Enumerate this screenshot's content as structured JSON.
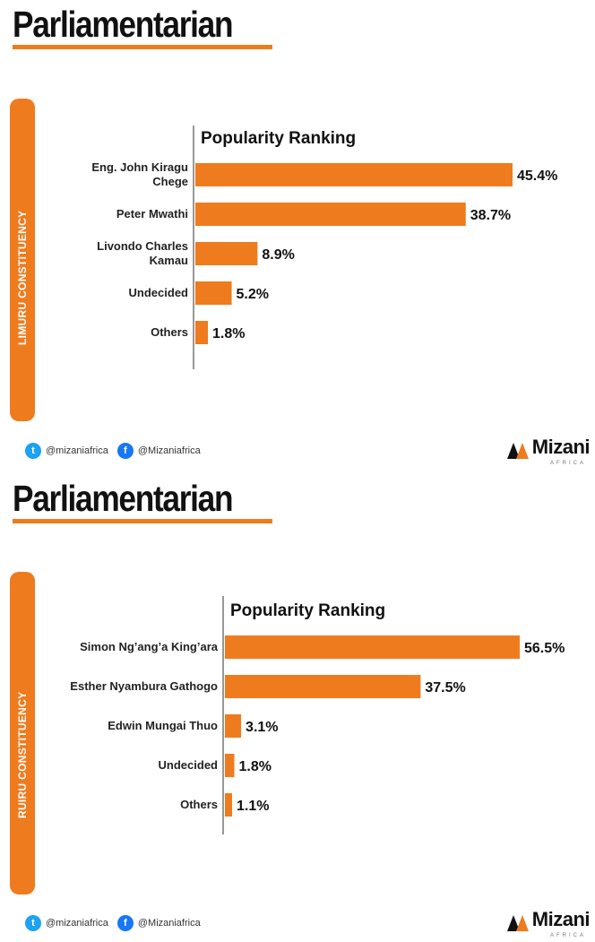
{
  "panels": [
    {
      "headline": "Parliamentarian",
      "constituency": "LIMURU CONSTITUENCY",
      "footer": {
        "twitter": "@mizaniafrica",
        "facebook": "@Mizaniafrica"
      },
      "logo": {
        "name": "Mizani",
        "sub": "AFRICA"
      }
    },
    {
      "headline": "Parliamentarian",
      "constituency": "RUIRU CONSTITUENCY",
      "footer": {
        "twitter": "@mizaniafrica",
        "facebook": "@Mizaniafrica"
      },
      "logo": {
        "name": "Mizani",
        "sub": "AFRICA"
      }
    }
  ],
  "colors": {
    "accent": "#ef7b1f",
    "text": "#111111"
  },
  "icons": [
    "twitter-icon",
    "facebook-icon",
    "mizani-logo-icon"
  ],
  "chart_data": [
    {
      "type": "bar",
      "orientation": "horizontal",
      "title": "Popularity Ranking",
      "categories": [
        "Eng. John Kiragu Chege",
        "Peter Mwathi",
        "Livondo Charles Kamau",
        "Undecided",
        "Others"
      ],
      "category_lines": [
        [
          "Eng. John Kiragu",
          "Chege"
        ],
        [
          "Peter Mwathi"
        ],
        [
          "Livondo Charles",
          "Kamau"
        ],
        [
          "Undecided"
        ],
        [
          "Others"
        ]
      ],
      "values": [
        45.4,
        38.7,
        8.9,
        5.2,
        1.8
      ],
      "value_labels": [
        "45.4%",
        "38.7%",
        "8.9%",
        "5.2%",
        "1.8%"
      ],
      "xlim": [
        0,
        60
      ],
      "grid": false,
      "legend": "none"
    },
    {
      "type": "bar",
      "orientation": "horizontal",
      "title": "Popularity Ranking",
      "categories": [
        "Simon Ng'ang'a King'ara",
        "Esther Nyambura Gathogo",
        "Edwin Mungai Thuo",
        "Undecided",
        "Others"
      ],
      "category_lines": [
        [
          "Simon Ng’ang’a King’ara"
        ],
        [
          "Esther Nyambura Gathogo"
        ],
        [
          "Edwin Mungai Thuo"
        ],
        [
          "Undecided"
        ],
        [
          "Others"
        ]
      ],
      "values": [
        56.5,
        37.5,
        3.1,
        1.8,
        1.1
      ],
      "value_labels": [
        "56.5%",
        "37.5%",
        "3.1%",
        "1.8%",
        "1.1%"
      ],
      "xlim": [
        0,
        60
      ],
      "grid": false,
      "legend": "none"
    }
  ]
}
